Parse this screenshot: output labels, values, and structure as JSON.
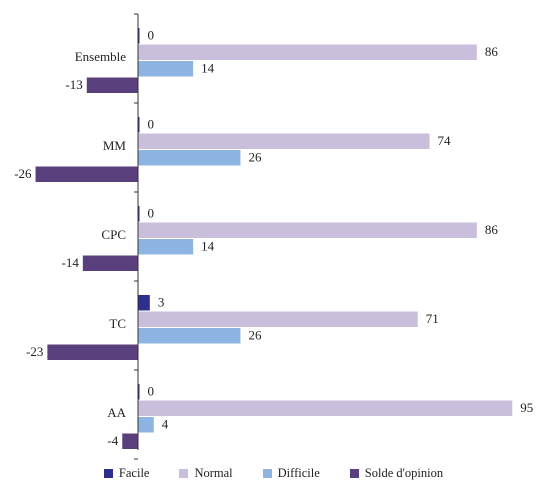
{
  "chart_data": {
    "type": "bar",
    "orientation": "horizontal",
    "categories": [
      "Ensemble",
      "MM",
      "CPC",
      "TC",
      "AA"
    ],
    "series": [
      {
        "name": "Facile",
        "color": "#2e2e8f",
        "values": [
          0,
          0,
          0,
          3,
          0
        ]
      },
      {
        "name": "Normal",
        "color": "#c9bedc",
        "values": [
          86,
          74,
          86,
          71,
          95
        ]
      },
      {
        "name": "Difficile",
        "color": "#8db4e2",
        "values": [
          14,
          26,
          14,
          26,
          4
        ]
      },
      {
        "name": "Solde d'opinion",
        "color": "#5a3f7d",
        "values": [
          -13,
          -26,
          -14,
          -23,
          -4
        ]
      }
    ],
    "xlim": [
      -26,
      95
    ],
    "grid": false,
    "legend_position": "bottom"
  }
}
